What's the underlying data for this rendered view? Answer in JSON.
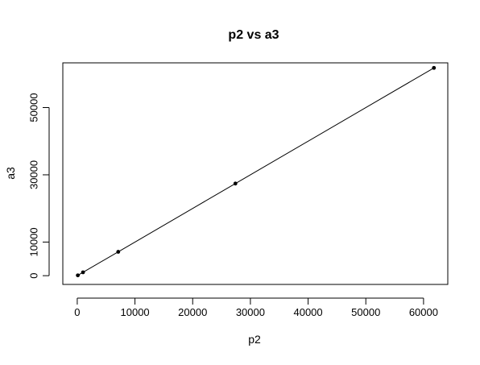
{
  "chart_data": {
    "type": "line",
    "title": "p2 vs a3",
    "xlabel": "p2",
    "ylabel": "a3",
    "x_ticks": [
      0,
      10000,
      20000,
      30000,
      40000,
      50000,
      60000
    ],
    "y_ticks": [
      0,
      10000,
      30000,
      50000
    ],
    "xlim": [
      -2500,
      64200
    ],
    "ylim": [
      -2600,
      63300
    ],
    "grid": false,
    "legend": "none",
    "colors": {
      "line": "#000000",
      "points": "#000000",
      "box": "#000000"
    },
    "series": [
      {
        "x": [
          100,
          1000,
          7100,
          27400,
          61800
        ],
        "y": [
          100,
          1000,
          7100,
          27400,
          61800
        ]
      }
    ]
  }
}
